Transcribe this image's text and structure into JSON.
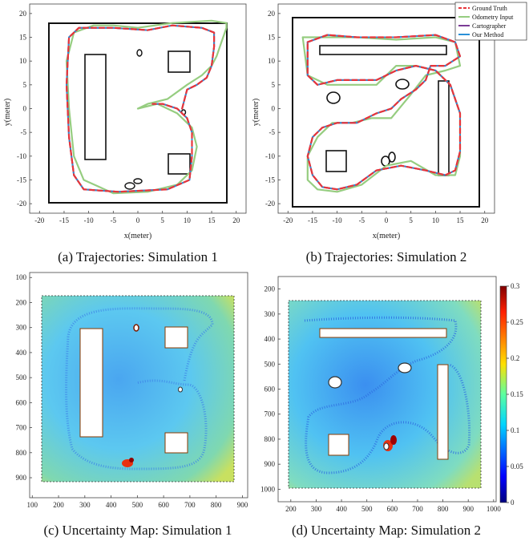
{
  "captions": {
    "a": "(a) Trajectories: Simulation 1",
    "b": "(b) Trajectories: Simulation 2",
    "c": "(c) Uncertainty Map: Simulation 1",
    "d": "(d) Uncertainty Map: Simulation 2"
  },
  "colors": {
    "ground_truth": "#e8353a",
    "odometry": "#96cd80",
    "cartographer": "#7b3c96",
    "our_method": "#2a90d8",
    "map_bg": "#6cc6f0"
  },
  "chart_data": [
    {
      "type": "line",
      "panel": "a",
      "xlabel": "x(meter)",
      "ylabel": "y(meter)",
      "xlim": [
        -22,
        22
      ],
      "ylim": [
        -22,
        22
      ],
      "xticks": [
        -20,
        -15,
        -10,
        -5,
        0,
        5,
        10,
        15,
        20
      ],
      "yticks": [
        20,
        15,
        10,
        5,
        0,
        -5,
        -10,
        -15,
        -20
      ],
      "series": [
        {
          "name": "Ground Truth",
          "x": [
            9,
            10,
            12,
            14,
            15,
            15.5,
            15.5,
            13,
            7,
            2,
            -5,
            -12,
            -14,
            -14.5,
            -14,
            -13,
            -11,
            -4,
            6,
            10.5,
            11,
            11,
            10,
            8,
            5,
            3
          ],
          "y": [
            0,
            4,
            5,
            6.5,
            9,
            13,
            16,
            17,
            17.5,
            16.5,
            17,
            17,
            15,
            5,
            -6,
            -14,
            -17,
            -17.5,
            -17,
            -15,
            -10,
            -5,
            -2,
            0,
            1,
            1
          ]
        },
        {
          "name": "Odometry Input",
          "x": [
            0,
            2,
            6,
            10,
            13,
            15,
            16,
            17,
            18,
            18,
            15,
            7,
            0,
            -5,
            -9,
            -13,
            -14.5,
            -14,
            -13,
            -11,
            -5,
            2,
            8,
            11,
            12,
            11,
            8,
            4,
            0
          ],
          "y": [
            0,
            1,
            2,
            5,
            7,
            9,
            11,
            14,
            17,
            18,
            18.5,
            18,
            17,
            17.5,
            17.5,
            16,
            10,
            0,
            -10,
            -15,
            -17.8,
            -17.5,
            -16,
            -13,
            -8,
            -4,
            -1,
            1,
            0
          ]
        },
        {
          "name": "Cartographer",
          "x": [
            9,
            10,
            12,
            14,
            15,
            15.5,
            15.5,
            13,
            7,
            2,
            -5,
            -12,
            -14,
            -14.5,
            -14,
            -13,
            -11,
            -4,
            6,
            10.5,
            11,
            11,
            10,
            8,
            5,
            3
          ],
          "y": [
            0,
            4,
            5,
            6.5,
            9,
            13,
            16,
            17,
            17.5,
            16.5,
            17,
            17,
            15,
            5,
            -6,
            -14,
            -17,
            -17.5,
            -17,
            -15,
            -10,
            -5,
            -2,
            0,
            1,
            1
          ]
        },
        {
          "name": "Our Method",
          "x": [
            9,
            10,
            12,
            14,
            15,
            15.5,
            15.5,
            13,
            7,
            2,
            -5,
            -12,
            -14,
            -14.5,
            -14,
            -13,
            -11,
            -4,
            6,
            10.5,
            11,
            11,
            10,
            8,
            5,
            3
          ],
          "y": [
            0,
            4,
            5,
            6.5,
            9,
            13,
            16,
            17,
            17.5,
            16.5,
            17,
            17,
            15,
            5,
            -6,
            -14,
            -17,
            -17.5,
            -17,
            -15,
            -10,
            -5,
            -2,
            0,
            1,
            1
          ]
        }
      ]
    },
    {
      "type": "line",
      "panel": "b",
      "xlabel": "x(meter)",
      "ylabel": "y(meter)",
      "xlim": [
        -22,
        22
      ],
      "ylim": [
        -22,
        22
      ],
      "xticks": [
        -20,
        -15,
        -10,
        -5,
        0,
        5,
        10,
        15,
        20
      ],
      "yticks": [
        20,
        15,
        10,
        5,
        0,
        -5,
        -10,
        -15,
        -20
      ],
      "legend": "top-right",
      "series": [
        {
          "name": "Ground Truth",
          "x": [
            -16,
            -12,
            -6,
            2,
            10,
            14,
            15,
            12,
            9,
            8,
            6,
            3,
            1,
            -2,
            -4,
            -6,
            -10,
            -13,
            -15,
            -16,
            -15,
            -13,
            -10,
            -6,
            -2,
            3,
            8,
            12,
            14,
            15,
            15,
            13,
            10,
            6,
            2,
            -2,
            -6,
            -10,
            -14,
            -16,
            -16
          ],
          "y": [
            14,
            15.5,
            15,
            15,
            15.5,
            14,
            11,
            9,
            9,
            6,
            4,
            2,
            0,
            -1,
            -2,
            -3,
            -3,
            -4,
            -6,
            -10,
            -14,
            -16.5,
            -17,
            -16,
            -13,
            -12,
            -13,
            -14,
            -13,
            -9,
            -1,
            5,
            8,
            9,
            8,
            6,
            6,
            6,
            5,
            7,
            14
          ]
        },
        {
          "name": "Odometry Input",
          "x": [
            -17,
            -13,
            -6,
            2,
            10,
            14,
            15,
            12,
            8,
            5,
            1,
            -3,
            -7,
            -11,
            -14,
            -16,
            -16,
            -14,
            -10,
            -5,
            0,
            5,
            10,
            14,
            15,
            15,
            13,
            10,
            6,
            2,
            -2,
            -7,
            -12,
            -16,
            -17
          ],
          "y": [
            15,
            15,
            15,
            14.5,
            15,
            14,
            9,
            8,
            7,
            3,
            -2,
            -2,
            -3,
            -3,
            -6,
            -10,
            -15,
            -17,
            -17.5,
            -16,
            -12,
            -11,
            -14,
            -14,
            -10,
            -1,
            5,
            8,
            9,
            9,
            5,
            5,
            5,
            7,
            15
          ]
        },
        {
          "name": "Cartographer",
          "x": [
            -16,
            -12,
            -6,
            2,
            10,
            14,
            15,
            12,
            9,
            8,
            6,
            3,
            1,
            -2,
            -4,
            -6,
            -10,
            -13,
            -15,
            -16,
            -15,
            -13,
            -10,
            -6,
            -2,
            3,
            8,
            12,
            14,
            15,
            15,
            13,
            10,
            6,
            2,
            -2,
            -6,
            -10,
            -14,
            -16,
            -16
          ],
          "y": [
            14,
            15.5,
            15,
            15,
            15.5,
            14,
            11,
            9,
            9,
            6,
            4,
            2,
            0,
            -1,
            -2,
            -3,
            -3,
            -4,
            -6,
            -10,
            -14,
            -16.5,
            -17,
            -16,
            -13,
            -12,
            -13,
            -14,
            -13,
            -9,
            -1,
            5,
            8,
            9,
            8,
            6,
            6,
            6,
            5,
            7,
            14
          ]
        },
        {
          "name": "Our Method",
          "x": [
            -16,
            -12,
            -6,
            2,
            10,
            14,
            15,
            12,
            9,
            8,
            6,
            3,
            1,
            -2,
            -4,
            -6,
            -10,
            -13,
            -15,
            -16,
            -15,
            -13,
            -10,
            -6,
            -2,
            3,
            8,
            12,
            14,
            15,
            15,
            13,
            10,
            6,
            2,
            -2,
            -6,
            -10,
            -14,
            -16,
            -16
          ],
          "y": [
            14,
            15.5,
            15,
            15,
            15.5,
            14,
            11,
            9,
            9,
            6,
            4,
            2,
            0,
            -1,
            -2,
            -3,
            -3,
            -4,
            -6,
            -10,
            -14,
            -16.5,
            -17,
            -16,
            -13,
            -12,
            -13,
            -14,
            -13,
            -9,
            -1,
            5,
            8,
            9,
            8,
            6,
            6,
            6,
            5,
            7,
            14
          ]
        }
      ]
    },
    {
      "type": "heatmap",
      "panel": "c",
      "xlim": [
        90,
        920
      ],
      "ylim": [
        80,
        980
      ],
      "xticks": [
        100,
        200,
        300,
        400,
        500,
        600,
        700,
        800,
        900
      ],
      "yticks": [
        100,
        200,
        300,
        400,
        500,
        600,
        700,
        800,
        900
      ]
    },
    {
      "type": "heatmap",
      "panel": "d",
      "xlim": [
        150,
        1010
      ],
      "ylim": [
        150,
        1050
      ],
      "xticks": [
        200,
        300,
        400,
        500,
        600,
        700,
        800,
        900,
        1000
      ],
      "yticks": [
        200,
        300,
        400,
        500,
        600,
        700,
        800,
        900,
        1000
      ],
      "colorbar": {
        "range": [
          0,
          0.3
        ],
        "ticks": [
          "0.3",
          "0.25",
          "0.2",
          "0.15",
          "0.1",
          "0.05",
          "0"
        ]
      }
    }
  ]
}
